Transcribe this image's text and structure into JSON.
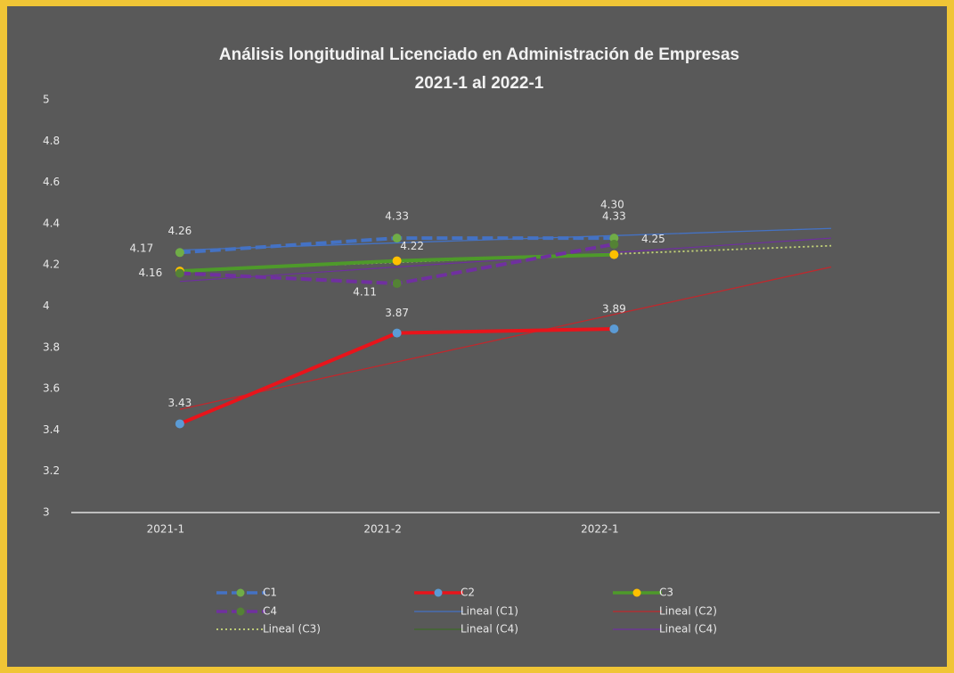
{
  "chart_data": {
    "type": "line",
    "title": [
      "Análisis longitudinal Licenciado en Administración de Empresas",
      "2021-1 al 2022-1"
    ],
    "categories": [
      "2021-1",
      "2021-2",
      "2022-1",
      null
    ],
    "ylim": [
      3,
      5
    ],
    "yticks": [
      3,
      3.2,
      3.4,
      3.6,
      3.8,
      4,
      4.2,
      4.4,
      4.6,
      4.8,
      5
    ],
    "grid": false,
    "legend": "bottom",
    "series": [
      {
        "name": "C1",
        "color": "#4472c4",
        "marker_color": "#70ad47",
        "line_style": "dashed",
        "values": [
          4.26,
          4.33,
          4.33,
          null
        ],
        "value_labels": [
          "4.26",
          "4.33",
          "4.33",
          null
        ]
      },
      {
        "name": "C2",
        "color": "#e8141b",
        "marker_color": "#5b9bd5",
        "line_style": "solid",
        "values": [
          3.43,
          3.87,
          3.89,
          null
        ],
        "value_labels": [
          "3.43",
          "3.87",
          "3.89",
          null
        ]
      },
      {
        "name": "C3",
        "color": "#4e9a2a",
        "marker_color": "#ffc000",
        "line_style": "solid",
        "values": [
          4.17,
          4.22,
          4.25,
          null
        ],
        "value_labels": [
          "4.17",
          "4.22",
          "4.25",
          null
        ]
      },
      {
        "name": "C4",
        "color": "#7030a0",
        "marker_color": "#548235",
        "line_style": "dashed",
        "values": [
          4.16,
          4.11,
          4.3,
          null
        ],
        "value_labels": [
          "4.16",
          "4.11",
          "4.30",
          null
        ]
      },
      {
        "name": "Lineal (C1)",
        "color": "#4472c4",
        "line_style": "thin",
        "values": [
          4.272,
          4.307,
          4.342,
          4.377
        ]
      },
      {
        "name": "Lineal (C2)",
        "color": "#c0282d",
        "line_style": "thin",
        "values": [
          3.5,
          3.73,
          3.96,
          4.19
        ]
      },
      {
        "name": "Lineal (C3)",
        "color": "#c9d97a",
        "line_style": "dotted",
        "values": [
          4.173,
          4.213,
          4.253,
          4.293
        ]
      },
      {
        "name": "Lineal (C4)",
        "color": "#3d6b27",
        "line_style": "thin",
        "values": [
          4.12,
          4.19,
          4.26,
          4.33
        ]
      },
      {
        "name": "Lineal (C4)",
        "color": "#7030a0",
        "line_style": "thin",
        "values": [
          4.12,
          4.19,
          4.26,
          4.33
        ]
      }
    ]
  }
}
